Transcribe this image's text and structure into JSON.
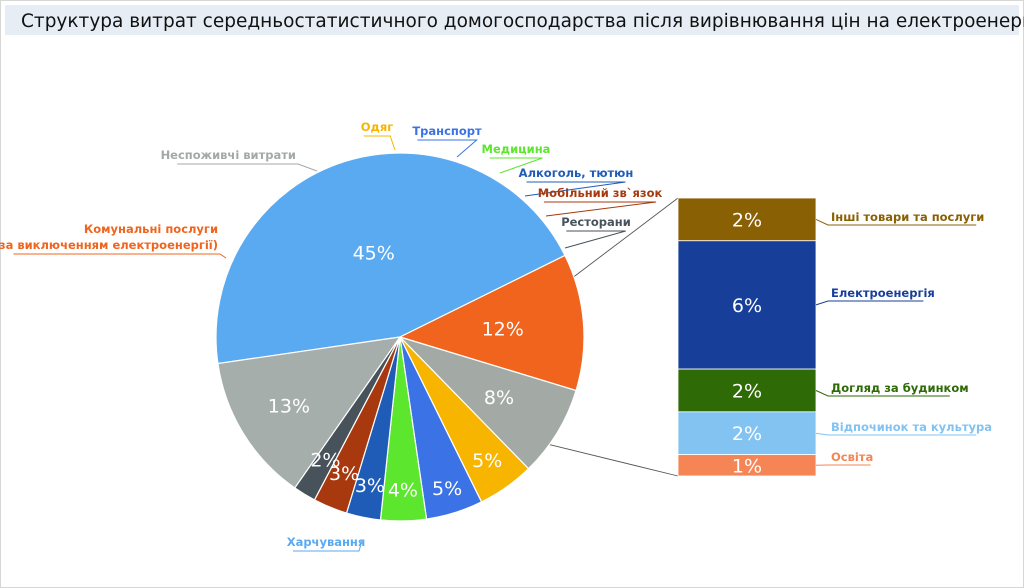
{
  "title": "Структура витрат середньостатистичного домогосподарства після вирівнювання цін на електроенергію",
  "chart_data": {
    "type": "bar-of-pie",
    "pie": [
      {
        "name": "Харчування",
        "value": 45,
        "label": "45%",
        "color": "#5aaaf2"
      },
      {
        "name": "Комунальні послуги\n(за виключенням електроенергії)",
        "value": 12,
        "label": "12%",
        "color": "#f0641e"
      },
      {
        "name": "Неспоживчі витрати",
        "value": 8,
        "label": "8%",
        "color": "#a3aaa6"
      },
      {
        "name": "Одяг",
        "value": 5,
        "label": "5%",
        "color": "#f7b500"
      },
      {
        "name": "Транспорт",
        "value": 5,
        "label": "5%",
        "color": "#3b73e6"
      },
      {
        "name": "Медицина",
        "value": 4,
        "label": "4%",
        "color": "#5ce62e"
      },
      {
        "name": "Алкоголь, тютюн",
        "value": 3,
        "label": "3%",
        "color": "#1f5cb8"
      },
      {
        "name": "Мобільний зв`язок",
        "value": 3,
        "label": "3%",
        "color": "#a8380e"
      },
      {
        "name": "Ресторани",
        "value": 2,
        "label": "2%",
        "color": "#47525a"
      },
      {
        "name": "",
        "value": 13,
        "label": "13%",
        "color": "#a6aeab"
      }
    ],
    "bar": [
      {
        "name": "Інші товари та послуги",
        "value": 2,
        "label": "2%",
        "color": "#8a6005"
      },
      {
        "name": "Електроенергія",
        "value": 6,
        "label": "6%",
        "color": "#173f9a"
      },
      {
        "name": "Догляд за будинком",
        "value": 2,
        "label": "2%",
        "color": "#2e6a05"
      },
      {
        "name": "Відпочинок та культура",
        "value": 2,
        "label": "2%",
        "color": "#82c3f2"
      },
      {
        "name": "Освіта",
        "value": 1,
        "label": "1%",
        "color": "#f58555"
      }
    ]
  }
}
